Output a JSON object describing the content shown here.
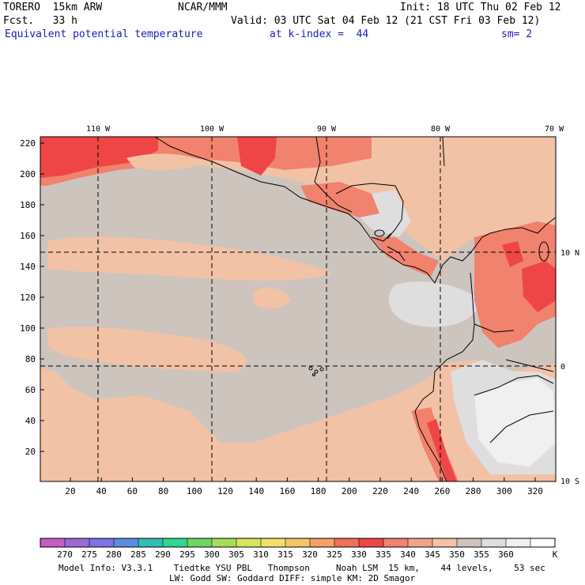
{
  "header": {
    "model": "TORERO  15km ARW",
    "org": "NCAR/MMM",
    "init": "Init: 18 UTC Thu 02 Feb 12",
    "fcst": "Fcst.   33 h",
    "valid": "Valid: 03 UTC Sat 04 Feb 12 (21 CST Fri 03 Feb 12)",
    "field": "Equivalent potential temperature",
    "level": "at k-index =  44",
    "smooth": "sm= 2"
  },
  "axes": {
    "top_lon_labels": [
      "110 W",
      "100 W",
      "90 W",
      "80 W",
      "70 W"
    ],
    "right_lat_labels": [
      "10 N",
      "0",
      "10 S"
    ],
    "x_ticks": [
      "20",
      "40",
      "60",
      "80",
      "100",
      "120",
      "140",
      "160",
      "180",
      "200",
      "220",
      "240",
      "260",
      "280",
      "300",
      "320"
    ],
    "y_ticks": [
      "220",
      "200",
      "180",
      "160",
      "140",
      "120",
      "100",
      "80",
      "60",
      "40",
      "20"
    ]
  },
  "colorbar": {
    "labels": [
      "270",
      "275",
      "280",
      "285",
      "290",
      "295",
      "300",
      "305",
      "310",
      "315",
      "320",
      "325",
      "330",
      "335",
      "340",
      "345",
      "350",
      "355",
      "360"
    ],
    "unit": "K",
    "colors": [
      "#c65ac6",
      "#9a6ad6",
      "#7e72e6",
      "#5a8ee2",
      "#32beb4",
      "#32d68e",
      "#6ed660",
      "#a6de58",
      "#d6e65a",
      "#f2e06a",
      "#f6c466",
      "#f6a064",
      "#f07058",
      "#ee4646",
      "#f0826e",
      "#f2a48a",
      "#f2c2a6",
      "#cec4be",
      "#dedede",
      "#f0f0f0",
      "#ffffff"
    ]
  },
  "footer": {
    "line1": "Model Info: V3.3.1    Tiedtke YSU PBL   Thompson     Noah LSM  15 km,    44 levels,    53 sec",
    "line2": "LW: Godd SW: Goddard DIFF: simple KM: 2D Smagor"
  }
}
